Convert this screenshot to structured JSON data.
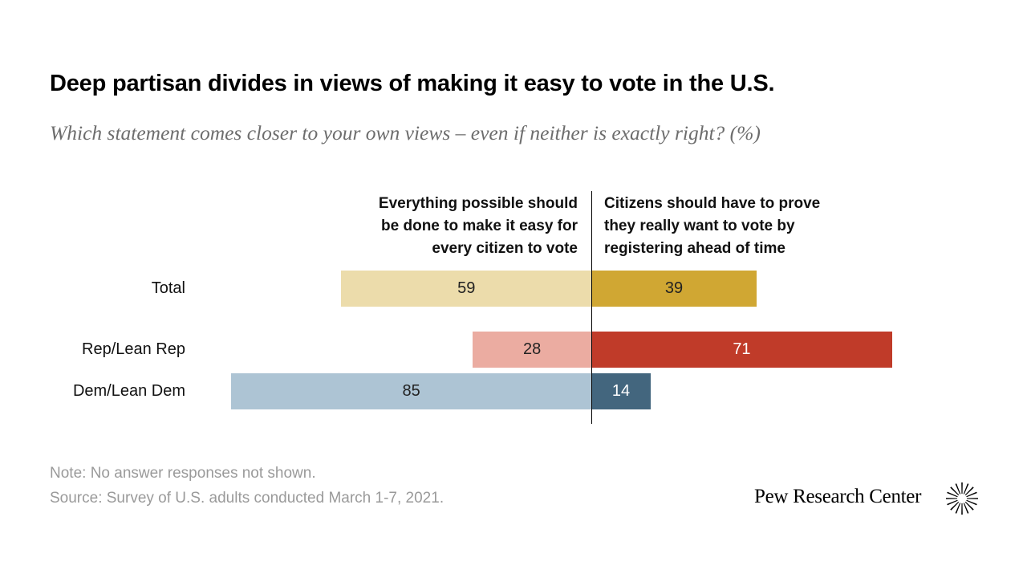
{
  "title": "Deep partisan divides in views of making it easy to vote in the U.S.",
  "subtitle": "Which statement comes closer to your own views – even if neither is exactly right? (%)",
  "chart_data": {
    "type": "bar",
    "orientation": "horizontal-diverging",
    "categories": [
      "Total",
      "Rep/Lean Rep",
      "Dem/Lean Dem"
    ],
    "series": [
      {
        "name": "Everything possible should\nbe done to make it easy for\nevery citizen to vote",
        "values": [
          59,
          28,
          85
        ],
        "colors": [
          "#ecdcab",
          "#ebaca1",
          "#adc4d4"
        ],
        "label_color": "#222222"
      },
      {
        "name": "Citizens should have to prove\nthey really want to vote by\nregistering ahead of time",
        "values": [
          39,
          71,
          14
        ],
        "colors": [
          "#d0a733",
          "#c03b29",
          "#43667e"
        ],
        "label_colors": [
          "#222222",
          "#ffffff",
          "#ffffff"
        ]
      }
    ],
    "xlim": [
      0,
      100
    ],
    "grid": false,
    "legend": "column headers above bars"
  },
  "footer": {
    "note": "Note: No answer responses not shown.",
    "source": "Source: Survey of U.S. adults conducted March 1-7, 2021."
  },
  "brand": {
    "name": "Pew Research Center",
    "logo_icon": "pew-starburst-icon"
  }
}
